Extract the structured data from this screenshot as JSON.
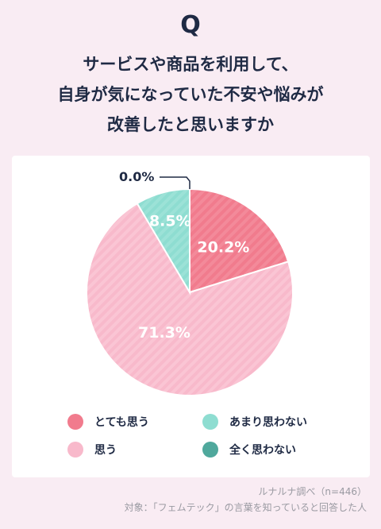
{
  "header": {
    "q_letter": "Q",
    "question_lines": [
      "サービスや商品を利用して、",
      "自身が気になっていた不安や悩みが",
      "改善したと思いますか"
    ]
  },
  "chart_data": {
    "type": "pie",
    "slices": [
      {
        "label": "とても思う",
        "value": 20.2,
        "display": "20.2%",
        "color": "#f17b8d"
      },
      {
        "label": "思う",
        "value": 71.3,
        "display": "71.3%",
        "color": "#f8b9cb"
      },
      {
        "label": "あまり思わない",
        "value": 8.5,
        "display": "8.5%",
        "color": "#8eddd1"
      },
      {
        "label": "全く思わない",
        "value": 0.0,
        "display": "0.0%",
        "color": "#4fa89c"
      }
    ],
    "order_clockwise_from_top": [
      "とても思う",
      "思う",
      "あまり思わない",
      "全く思わない"
    ],
    "legend_placement": "bottom"
  },
  "footer": {
    "source": "ルナルナ調べ（n=446）",
    "target": "対象：「フェムテック」の言葉を知っていると回答した人"
  }
}
